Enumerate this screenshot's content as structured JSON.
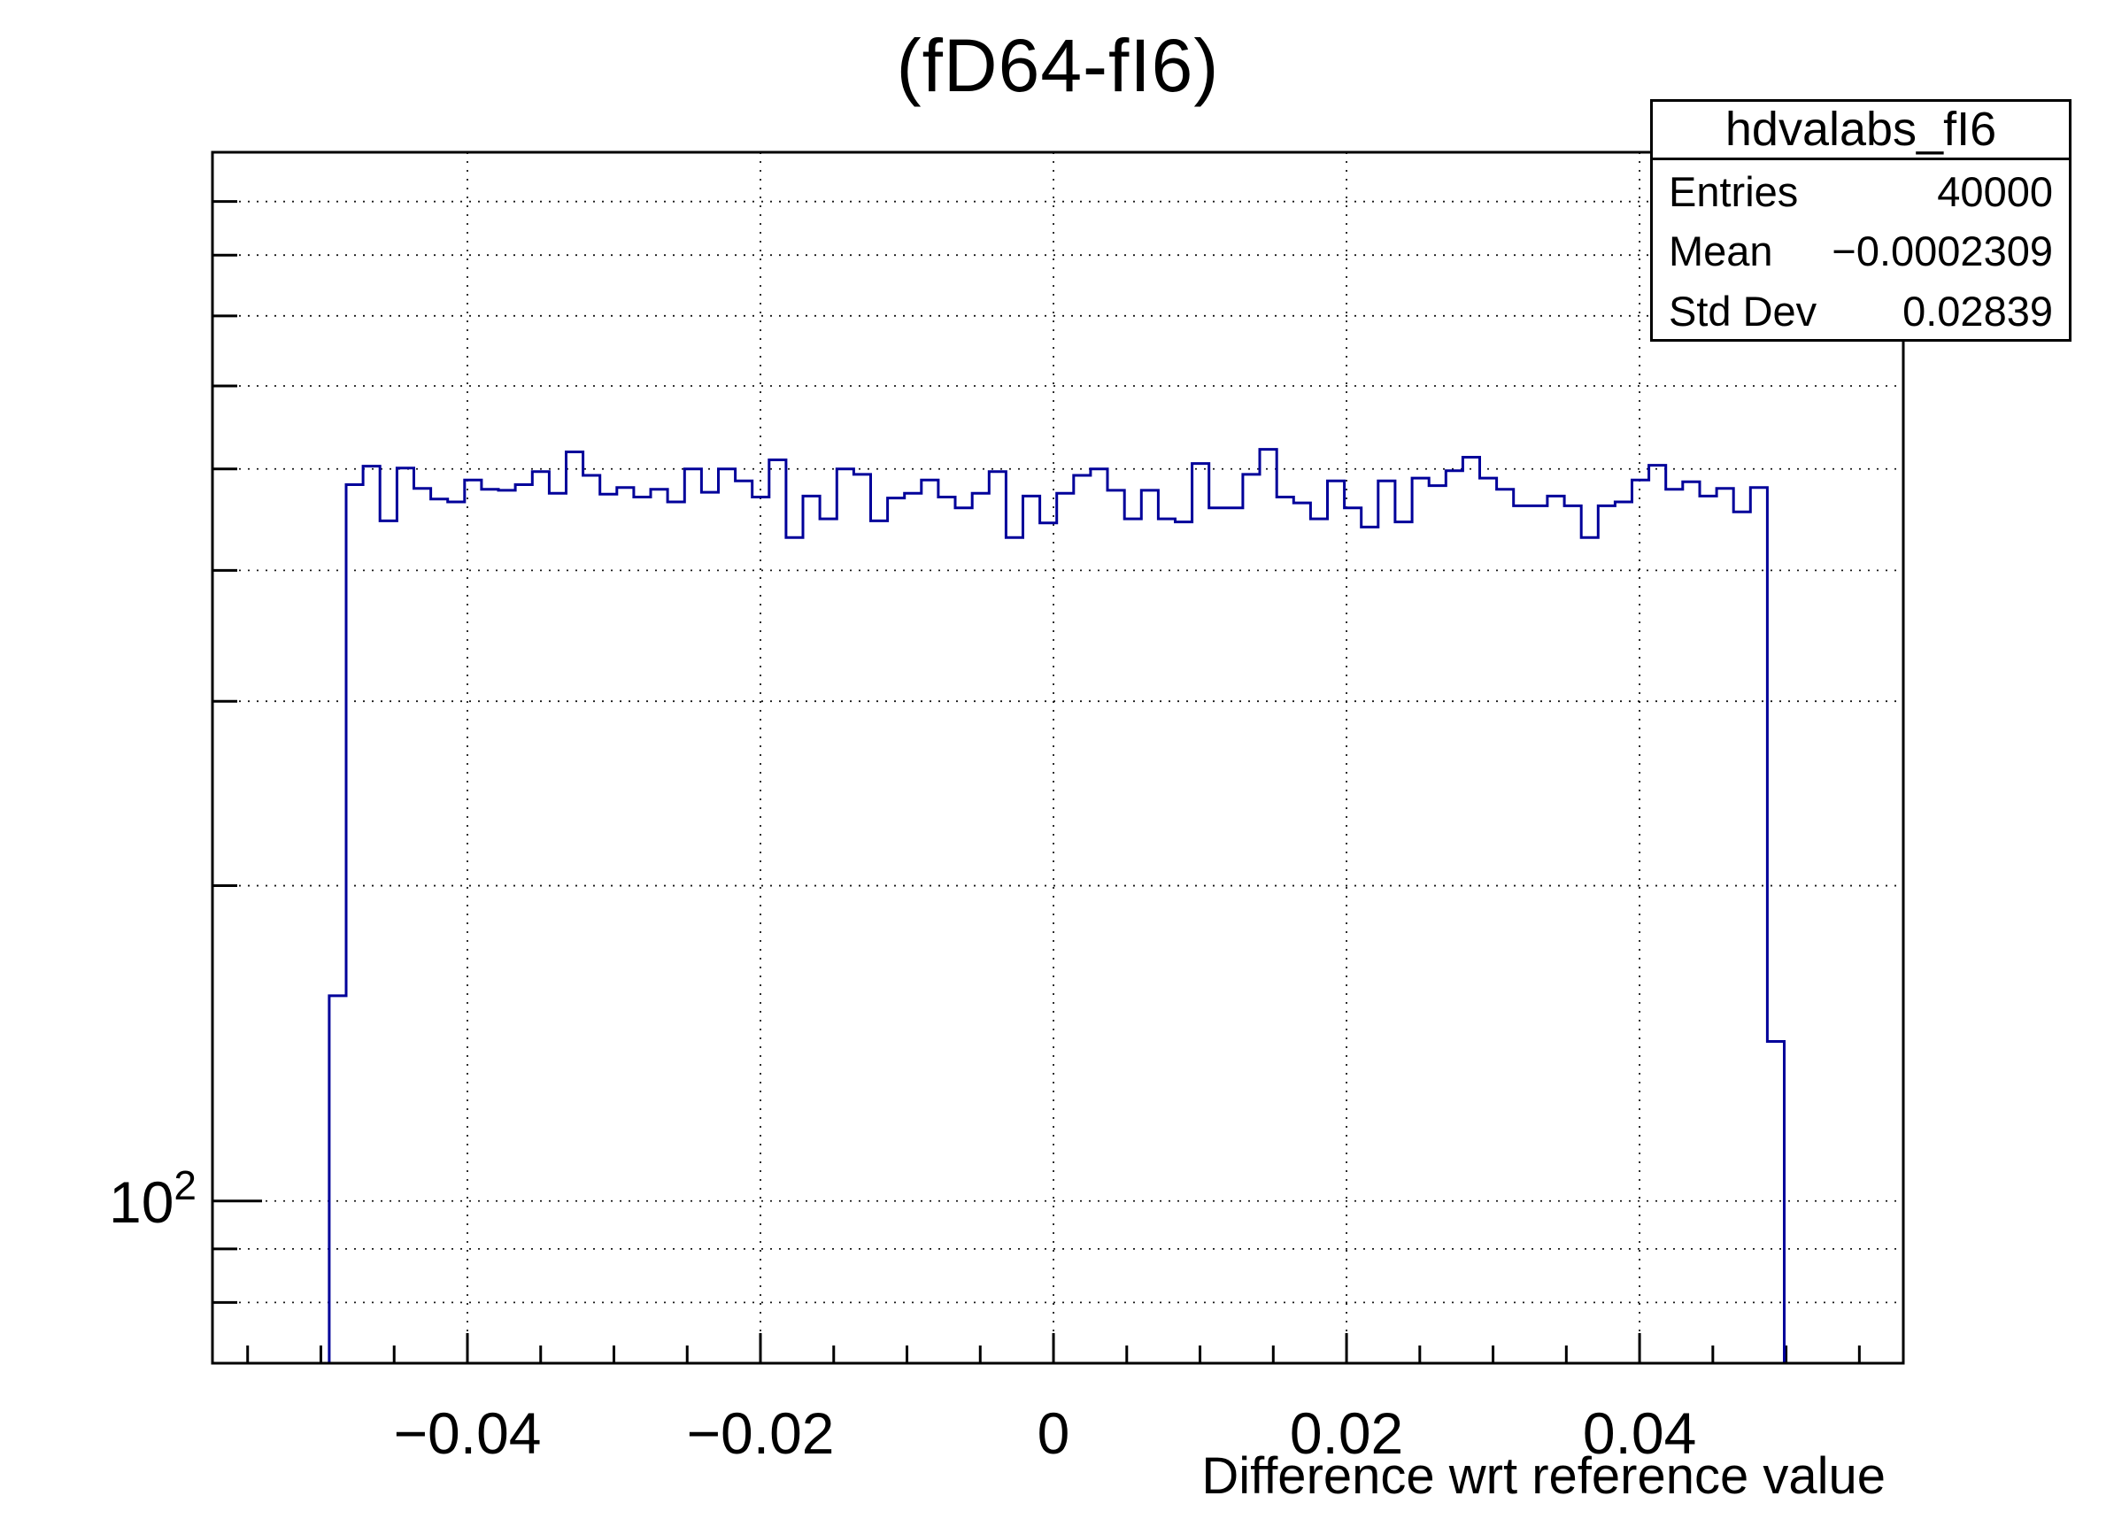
{
  "stats_box": {
    "name": "hdvalabs_fI6",
    "rows": [
      {
        "label": "Entries",
        "value": "40000"
      },
      {
        "label": "Mean",
        "value": "−0.0002309"
      },
      {
        "label": "Std Dev",
        "value": "0.02839"
      }
    ]
  },
  "chart_data": {
    "type": "bar",
    "subtype": "step-histogram-log-y",
    "title": "(fD64-fI6)",
    "hist_name": "hdvalabs_fI6",
    "entries": 40000,
    "mean": -0.0002309,
    "std_dev": 0.02839,
    "line_color": "#00009a",
    "background_color": "#ffffff",
    "grid": {
      "show": true,
      "style": "dotted",
      "color": "#000000"
    },
    "x_axis": {
      "label": "Difference wrt reference value",
      "min": -0.0574,
      "max": 0.058,
      "major_ticks": [
        -0.04,
        -0.02,
        0,
        0.02,
        0.04
      ],
      "major_tick_labels": [
        "−0.04",
        "−0.02",
        "0",
        "0.02",
        "0.04"
      ],
      "minor_tick_step": 0.005,
      "minor_tick_range": [
        -0.055,
        0.055
      ]
    },
    "y_axis": {
      "scale": "log",
      "min": 70,
      "max": 1003,
      "power_label": {
        "base": "10",
        "exponent": "2",
        "value": 100
      },
      "grid_values": [
        70,
        80,
        90,
        100,
        200,
        300,
        400,
        500,
        600,
        700,
        800,
        900
      ],
      "major_tick_values": [
        100
      ]
    },
    "bins": {
      "first_edge": -0.04943,
      "bin_width": 0.0011547,
      "counts": [
        157,
        483,
        503,
        446,
        501,
        479,
        468,
        465,
        488,
        478,
        477,
        483,
        497,
        474,
        519,
        493,
        473,
        480,
        470,
        478,
        465,
        500,
        475,
        500,
        487,
        470,
        510,
        430,
        471,
        448,
        500,
        494,
        446,
        469,
        474,
        488,
        470,
        459,
        474,
        497,
        430,
        471,
        444,
        474,
        493,
        500,
        477,
        448,
        477,
        448,
        445,
        506,
        459,
        459,
        494,
        522,
        470,
        464,
        448,
        487,
        459,
        440,
        487,
        445,
        490,
        482,
        498,
        513,
        490,
        478,
        461,
        461,
        471,
        461,
        430,
        461,
        465,
        488,
        504,
        478,
        486,
        471,
        479,
        455,
        480,
        142
      ]
    }
  }
}
